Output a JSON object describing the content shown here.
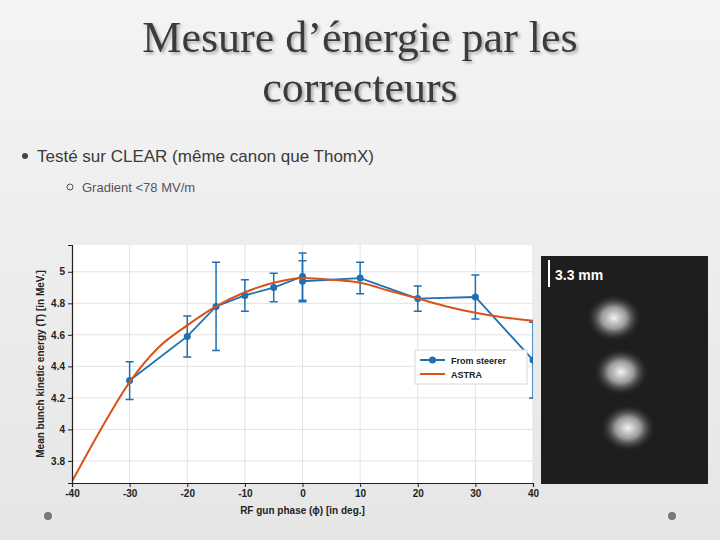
{
  "slide": {
    "title_lines": [
      "Mesure d’énergie par les",
      "correcteurs"
    ],
    "bullet": "Testé sur CLEAR (même canon que ThomX)",
    "sub_bullet": "Gradient <78 MV/m"
  },
  "image": {
    "scale_label": "3.3 mm"
  },
  "chart_data": {
    "type": "line",
    "xlabel": "RF gun phase (ϕ) [in deg.]",
    "ylabel": "Mean bunch kinetic energy (T) [in MeV.]",
    "xlim": [
      -40,
      40
    ],
    "xticks": [
      -40,
      -30,
      -20,
      -10,
      0,
      10,
      20,
      30,
      40
    ],
    "ylim": [
      3.66,
      5.17
    ],
    "yticks": [
      3.8,
      4,
      4.2,
      4.4,
      4.6,
      4.8,
      5
    ],
    "grid": true,
    "legend": "right",
    "series": [
      {
        "name": "From steerer",
        "color": "#1f6fb4",
        "marker": "circle",
        "line_style": "solid",
        "x": [
          -30,
          -20,
          -15,
          -10,
          -5,
          0,
          0,
          10,
          20,
          30,
          40
        ],
        "values": [
          4.31,
          4.59,
          4.78,
          4.85,
          4.9,
          4.97,
          4.94,
          4.96,
          4.83,
          4.84,
          4.44
        ],
        "errors": [
          0.12,
          0.13,
          0.28,
          0.1,
          0.09,
          0.15,
          0.13,
          0.1,
          0.08,
          0.14,
          0.24
        ]
      },
      {
        "name": "ASTRA",
        "color": "#d95319",
        "marker": "none",
        "line_style": "solid",
        "x": [
          -40,
          -35,
          -30,
          -25,
          -20,
          -15,
          -10,
          -5,
          0,
          5,
          10,
          15,
          20,
          25,
          30,
          35,
          40
        ],
        "values": [
          3.67,
          4.0,
          4.3,
          4.52,
          4.66,
          4.78,
          4.87,
          4.93,
          4.96,
          4.95,
          4.93,
          4.88,
          4.83,
          4.78,
          4.74,
          4.71,
          4.69
        ]
      }
    ]
  }
}
